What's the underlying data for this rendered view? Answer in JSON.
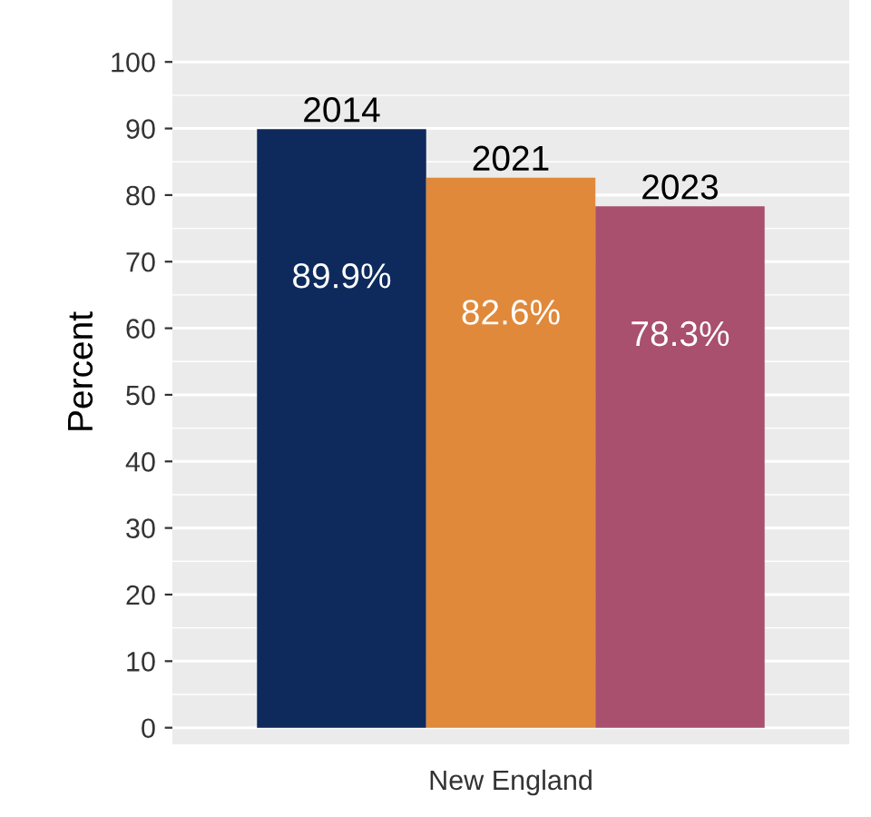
{
  "chart_data": {
    "type": "bar",
    "ylabel": "Percent",
    "categories": [
      "New England"
    ],
    "series": [
      {
        "name": "2014",
        "color": "#0e2a5c",
        "values": [
          89.9
        ],
        "value_labels": [
          "89.9%"
        ]
      },
      {
        "name": "2021",
        "color": "#e0893b",
        "values": [
          82.6
        ],
        "value_labels": [
          "82.6%"
        ]
      },
      {
        "name": "2023",
        "color": "#a8506d",
        "values": [
          78.3
        ],
        "value_labels": [
          "78.3%"
        ]
      }
    ],
    "ylim": [
      -2.5,
      109.3
    ],
    "yticks": [
      0,
      10,
      20,
      30,
      40,
      50,
      60,
      70,
      80,
      90,
      100
    ],
    "grid": "y"
  }
}
